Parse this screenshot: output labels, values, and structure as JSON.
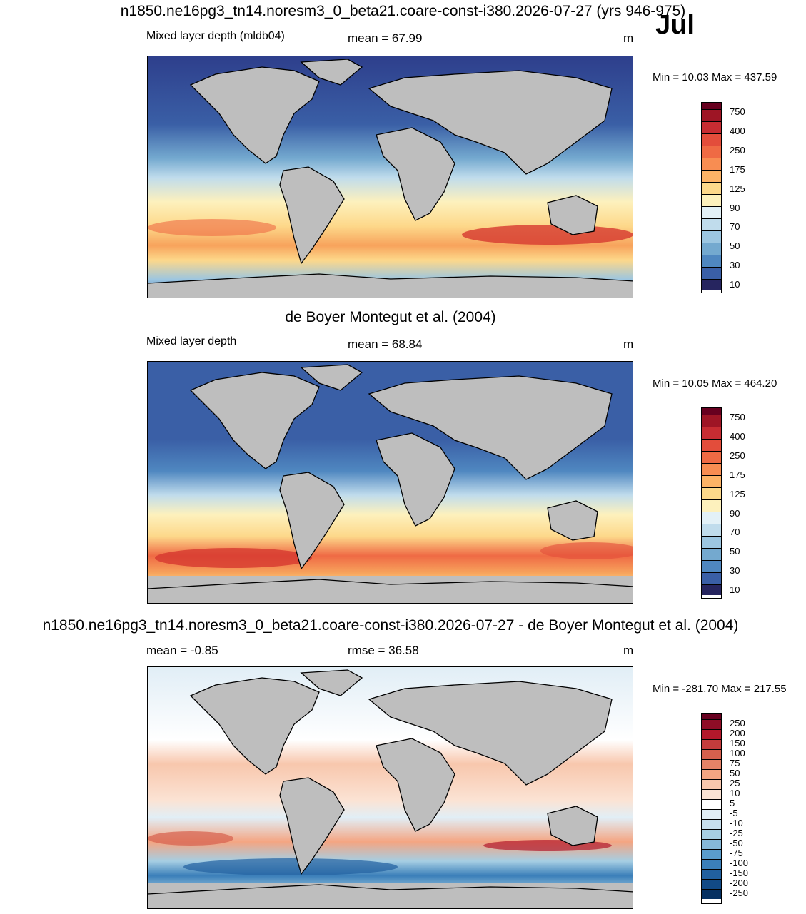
{
  "header": {
    "main_title": "n1850.ne16pg3_tn14.noresm3_0_beta21.coare-const-i380.2026-07-27 (yrs 946-975)",
    "month": "Jul"
  },
  "panels": [
    {
      "id": "model",
      "title": "",
      "left_label": "Mixed layer depth (mldb04)",
      "center_label": "mean =  67.99",
      "unit": "m",
      "minmax": "Min =  10.03 Max = 437.59",
      "colorbar": {
        "ticks": [
          "750",
          "400",
          "250",
          "175",
          "125",
          "90",
          "70",
          "50",
          "30",
          "10"
        ],
        "colors": [
          "#67001f",
          "#b2182b",
          "#d6382f",
          "#ef6a44",
          "#f7a35c",
          "#fdd88a",
          "#fdf1bd",
          "#e3f1f7",
          "#c0dcec",
          "#9cc6e1",
          "#74a9cf",
          "#4f87c0",
          "#3a5fa6",
          "#2e3f8c",
          "#26255f"
        ]
      }
    },
    {
      "id": "obs",
      "title": "de Boyer Montegut et al. (2004)",
      "left_label": "Mixed layer depth",
      "center_label": "mean =  68.84",
      "unit": "m",
      "minmax": "Min =  10.05 Max = 464.20",
      "colorbar": {
        "ticks": [
          "750",
          "400",
          "250",
          "175",
          "125",
          "90",
          "70",
          "50",
          "30",
          "10"
        ],
        "colors": [
          "#67001f",
          "#b2182b",
          "#d6382f",
          "#ef6a44",
          "#f7a35c",
          "#fdd88a",
          "#fdf1bd",
          "#e3f1f7",
          "#c0dcec",
          "#9cc6e1",
          "#74a9cf",
          "#4f87c0",
          "#3a5fa6",
          "#2e3f8c",
          "#26255f"
        ]
      }
    },
    {
      "id": "diff",
      "title": "n1850.ne16pg3_tn14.noresm3_0_beta21.coare-const-i380.2026-07-27 - de Boyer Montegut et al. (2004)",
      "left_label": "mean =  -0.85",
      "center_label": "rmse =  36.58",
      "unit": "m",
      "minmax": "Min = -281.70 Max = 217.55",
      "colorbar": {
        "ticks": [
          "250",
          "200",
          "150",
          "100",
          "75",
          "50",
          "25",
          "10",
          "5",
          "-5",
          "-10",
          "-25",
          "-50",
          "-75",
          "-100",
          "-150",
          "-200",
          "-250"
        ],
        "colors": [
          "#67001f",
          "#8e0d26",
          "#b2182b",
          "#c43c3c",
          "#d6604d",
          "#e58367",
          "#f4a582",
          "#f8c7ad",
          "#fbe3d4",
          "#ffffff",
          "#e1eef6",
          "#c7dfee",
          "#a6cee3",
          "#86b8d8",
          "#5a9ccb",
          "#3b7fb9",
          "#21609f",
          "#124a86",
          "#053061"
        ]
      }
    }
  ],
  "chart_data": [
    {
      "type": "heatmap",
      "title": "",
      "variable": "Mixed layer depth (mldb04)",
      "mean": 67.99,
      "unit": "m",
      "min": 10.03,
      "max": 437.59,
      "levels": [
        10,
        30,
        50,
        70,
        90,
        125,
        175,
        250,
        400,
        750
      ]
    },
    {
      "type": "heatmap",
      "title": "de Boyer Montegut et al. (2004)",
      "variable": "Mixed layer depth",
      "mean": 68.84,
      "unit": "m",
      "min": 10.05,
      "max": 464.2,
      "levels": [
        10,
        30,
        50,
        70,
        90,
        125,
        175,
        250,
        400,
        750
      ]
    },
    {
      "type": "heatmap",
      "title": "n1850.ne16pg3_tn14.noresm3_0_beta21.coare-const-i380.2026-07-27 - de Boyer Montegut et al. (2004)",
      "mean": -0.85,
      "rmse": 36.58,
      "unit": "m",
      "min": -281.7,
      "max": 217.55,
      "levels": [
        -250,
        -200,
        -150,
        -100,
        -75,
        -50,
        -25,
        -10,
        -5,
        5,
        10,
        25,
        50,
        75,
        100,
        150,
        200,
        250
      ]
    }
  ]
}
